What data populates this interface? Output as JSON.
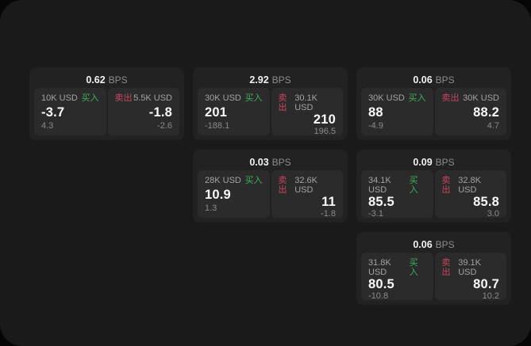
{
  "labels": {
    "bps_unit": "BPS",
    "buy": "买入",
    "sell": "卖出"
  },
  "colors": {
    "background": "#060606",
    "panel": "#1a1a1a",
    "card": "#222222",
    "side_panel": "#2b2b2b",
    "buy_accent": "#3fae5d",
    "sell_accent": "#c8455f",
    "primary_text": "#fafafa",
    "secondary_text": "#8c8c8c"
  },
  "cards": [
    {
      "col": 1,
      "row": 1,
      "bps": "0.62",
      "buy": {
        "size": "10K USD",
        "price": "-3.7",
        "delta": "4.3"
      },
      "sell": {
        "size": "5.5K USD",
        "price": "-1.8",
        "delta": "-2.6"
      }
    },
    {
      "col": 2,
      "row": 1,
      "bps": "2.92",
      "buy": {
        "size": "30K USD",
        "price": "201",
        "delta": "-188.1"
      },
      "sell": {
        "size": "30.1K USD",
        "price": "210",
        "delta": "196.5"
      }
    },
    {
      "col": 3,
      "row": 1,
      "bps": "0.06",
      "buy": {
        "size": "30K USD",
        "price": "88",
        "delta": "-4.9"
      },
      "sell": {
        "size": "30K USD",
        "price": "88.2",
        "delta": "4.7"
      }
    },
    {
      "col": 2,
      "row": 2,
      "bps": "0.03",
      "buy": {
        "size": "28K USD",
        "price": "10.9",
        "delta": "1.3"
      },
      "sell": {
        "size": "32.6K USD",
        "price": "11",
        "delta": "-1.8"
      }
    },
    {
      "col": 3,
      "row": 2,
      "bps": "0.09",
      "buy": {
        "size": "34.1K USD",
        "price": "85.5",
        "delta": "-3.1"
      },
      "sell": {
        "size": "32.8K USD",
        "price": "85.8",
        "delta": "3.0"
      }
    },
    {
      "col": 3,
      "row": 3,
      "bps": "0.06",
      "buy": {
        "size": "31.8K USD",
        "price": "80.5",
        "delta": "-10.8"
      },
      "sell": {
        "size": "39.1K USD",
        "price": "80.7",
        "delta": "10.2"
      }
    }
  ]
}
